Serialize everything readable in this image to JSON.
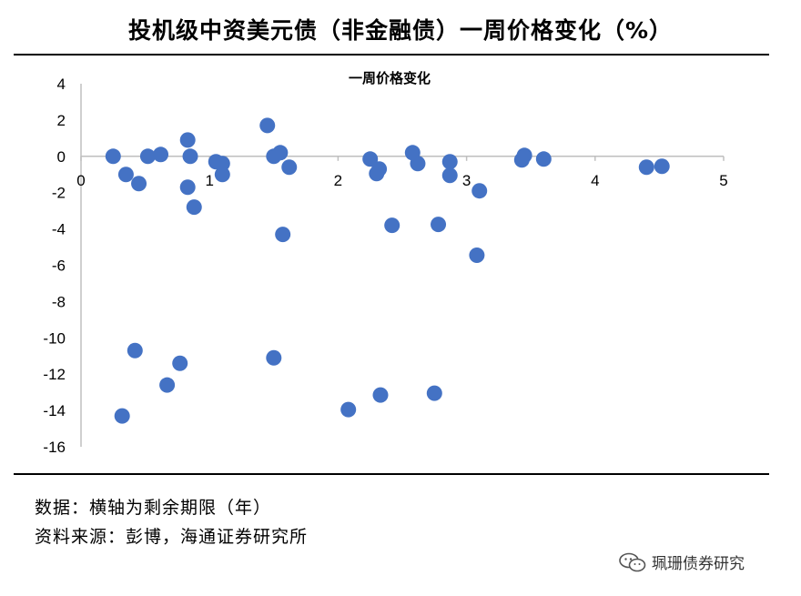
{
  "header": {
    "title": "投机级中资美元债（非金融债）一周价格变化（%）"
  },
  "chart_data": {
    "type": "scatter",
    "title": "一周价格变化",
    "xlabel": "",
    "ylabel": "",
    "xlim": [
      0,
      5
    ],
    "ylim": [
      -16,
      4
    ],
    "x_ticks": [
      0,
      1,
      2,
      3,
      4,
      5
    ],
    "y_ticks": [
      4,
      2,
      0,
      -2,
      -4,
      -6,
      -8,
      -10,
      -12,
      -14,
      -16
    ],
    "grid": false,
    "marker_color": "#4472C4",
    "points": [
      {
        "x": 0.25,
        "y": 0.0
      },
      {
        "x": 0.35,
        "y": -1.0
      },
      {
        "x": 0.45,
        "y": -1.5
      },
      {
        "x": 0.52,
        "y": 0.0
      },
      {
        "x": 0.62,
        "y": 0.1
      },
      {
        "x": 0.83,
        "y": 0.9
      },
      {
        "x": 0.85,
        "y": 0.0
      },
      {
        "x": 0.83,
        "y": -1.7
      },
      {
        "x": 0.88,
        "y": -2.8
      },
      {
        "x": 1.05,
        "y": -0.3
      },
      {
        "x": 1.1,
        "y": -0.4
      },
      {
        "x": 1.1,
        "y": -1.0
      },
      {
        "x": 1.45,
        "y": 1.7
      },
      {
        "x": 1.5,
        "y": 0.0
      },
      {
        "x": 1.55,
        "y": 0.2
      },
      {
        "x": 1.62,
        "y": -0.6
      },
      {
        "x": 1.57,
        "y": -4.3
      },
      {
        "x": 2.25,
        "y": -0.15
      },
      {
        "x": 2.3,
        "y": -0.95
      },
      {
        "x": 2.32,
        "y": -0.7
      },
      {
        "x": 2.42,
        "y": -3.8
      },
      {
        "x": 2.58,
        "y": 0.2
      },
      {
        "x": 2.62,
        "y": -0.4
      },
      {
        "x": 2.78,
        "y": -3.75
      },
      {
        "x": 2.87,
        "y": -0.3
      },
      {
        "x": 2.87,
        "y": -1.05
      },
      {
        "x": 3.08,
        "y": -5.45
      },
      {
        "x": 3.1,
        "y": -1.9
      },
      {
        "x": 3.43,
        "y": -0.2
      },
      {
        "x": 3.45,
        "y": 0.05
      },
      {
        "x": 3.6,
        "y": -0.15
      },
      {
        "x": 4.4,
        "y": -0.6
      },
      {
        "x": 4.52,
        "y": -0.55
      },
      {
        "x": 0.42,
        "y": -10.7
      },
      {
        "x": 0.32,
        "y": -14.3
      },
      {
        "x": 0.67,
        "y": -12.6
      },
      {
        "x": 0.77,
        "y": -11.4
      },
      {
        "x": 1.5,
        "y": -11.1
      },
      {
        "x": 2.08,
        "y": -13.95
      },
      {
        "x": 2.33,
        "y": -13.15
      },
      {
        "x": 2.75,
        "y": -13.05
      }
    ]
  },
  "notes": {
    "data_note": "数据：横轴为剩余期限（年）",
    "source_note": "资料来源：彭博，海通证券研究所"
  },
  "watermark": {
    "text": "珮珊债券研究"
  }
}
